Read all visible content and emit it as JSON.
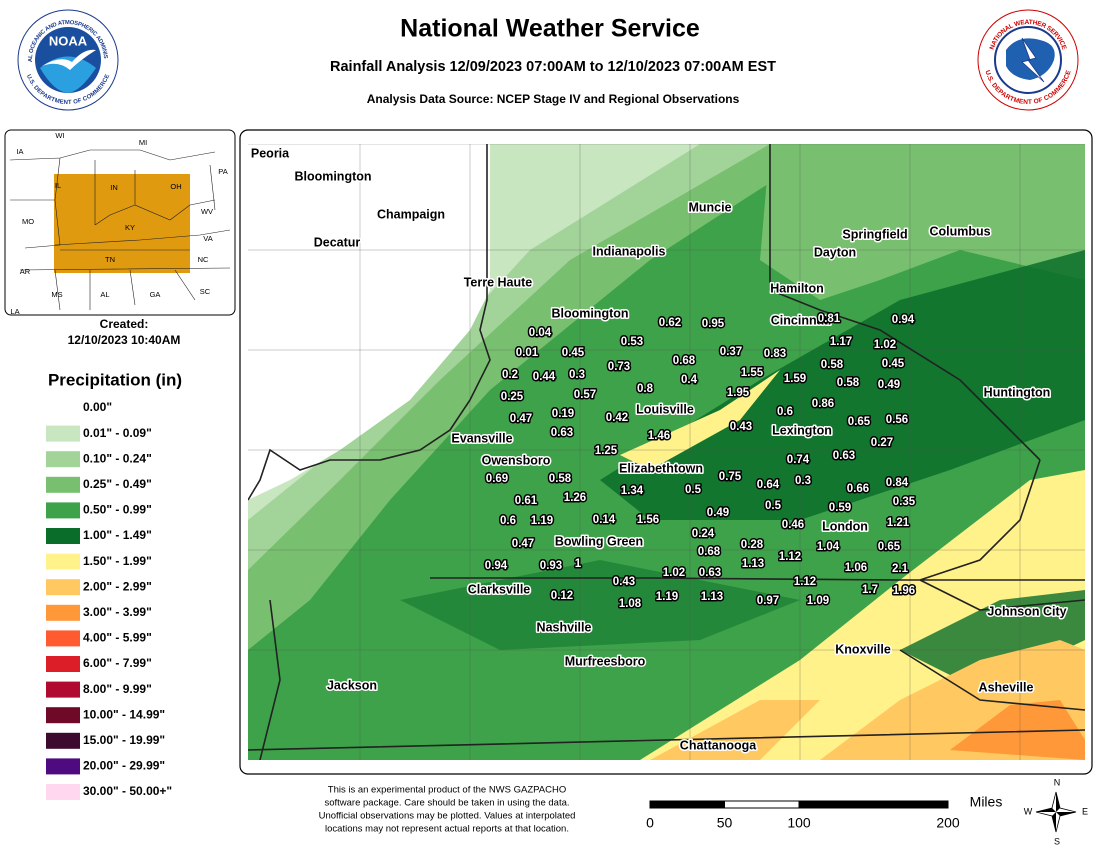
{
  "header": {
    "title": "National Weather Service",
    "subtitle": "Rainfall Analysis 12/09/2023 07:00AM to 12/10/2023 07:00AM EST",
    "source": "Analysis Data Source: NCEP Stage IV and Regional Observations"
  },
  "logos": {
    "noaa_center": "NOAA",
    "noaa_top": "NATIONAL OCEANIC AND ATMOSPHERIC ADMINISTRATION",
    "noaa_bottom": "U.S. DEPARTMENT OF COMMERCE",
    "nws_top": "NATIONAL WEATHER SERVICE",
    "nws_bottom": "U.S. DEPARTMENT OF COMMERCE"
  },
  "inset": {
    "states": [
      "WI",
      "MI",
      "IA",
      "IL",
      "IN",
      "OH",
      "PA",
      "MO",
      "KY",
      "WV",
      "VA",
      "NC",
      "TN",
      "AR",
      "MS",
      "AL",
      "GA",
      "SC",
      "LA"
    ]
  },
  "created": {
    "label": "Created:",
    "date": "12/10/2023 10:40AM"
  },
  "legend": {
    "title": "Precipitation (in)",
    "items": [
      {
        "label": "0.00\"",
        "color": "#ffffff"
      },
      {
        "label": "0.01\" - 0.09\"",
        "color": "#c8e6c0"
      },
      {
        "label": "0.10\" - 0.24\"",
        "color": "#a2d49a"
      },
      {
        "label": "0.25\" - 0.49\"",
        "color": "#78c070"
      },
      {
        "label": "0.50\" - 0.99\"",
        "color": "#3ea24a"
      },
      {
        "label": "1.00\" - 1.49\"",
        "color": "#0a6e2a"
      },
      {
        "label": "1.50\" - 1.99\"",
        "color": "#fff28a"
      },
      {
        "label": "2.00\" - 2.99\"",
        "color": "#ffc860"
      },
      {
        "label": "3.00\" - 3.99\"",
        "color": "#ff9838"
      },
      {
        "label": "4.00\" - 5.99\"",
        "color": "#ff5a30"
      },
      {
        "label": "6.00\" - 7.99\"",
        "color": "#dc1e28"
      },
      {
        "label": "8.00\" - 9.99\"",
        "color": "#b00a30"
      },
      {
        "label": "10.00\" - 14.99\"",
        "color": "#6e0a28"
      },
      {
        "label": "15.00\" - 19.99\"",
        "color": "#3c0a2e"
      },
      {
        "label": "20.00\" - 29.99\"",
        "color": "#500a80"
      },
      {
        "label": "30.00\" - 50.00+\"",
        "color": "#ffd8f0"
      }
    ]
  },
  "cities": [
    "Peoria",
    "Bloomington",
    "Champaign",
    "Decatur",
    "Muncie",
    "Indianapolis",
    "Springfield",
    "Columbus",
    "Dayton",
    "Terre Haute",
    "Hamilton",
    "Bloomington",
    "Cincinnati",
    "Huntington",
    "Louisville",
    "Lexington",
    "Evansville",
    "Owensboro",
    "Elizabethtown",
    "London",
    "Bowling Green",
    "Clarksville",
    "Johnson City",
    "Nashville",
    "Knoxville",
    "Murfreesboro",
    "Asheville",
    "Jackson",
    "Chattanooga"
  ],
  "observations": [
    0.04,
    0.62,
    0.95,
    0.81,
    0.94,
    0.53,
    1.17,
    1.02,
    0.01,
    0.45,
    0.37,
    0.83,
    0.68,
    0.73,
    0.58,
    0.45,
    1.55,
    0.2,
    0.44,
    0.3,
    0.4,
    1.59,
    0.58,
    0.49,
    0.8,
    0.57,
    1.95,
    0.25,
    0.86,
    0.47,
    0.19,
    0.42,
    0.6,
    0.65,
    0.56,
    0.43,
    0.63,
    1.46,
    0.27,
    1.25,
    0.63,
    0.74,
    0.69,
    0.58,
    0.75,
    0.64,
    0.3,
    0.66,
    0.84,
    1.34,
    0.5,
    0.61,
    1.26,
    0.35,
    0.49,
    0.5,
    0.59,
    0.6,
    1.19,
    0.14,
    1.56,
    0.46,
    1.21,
    0.24,
    0.47,
    0.28,
    1.04,
    0.65,
    0.68,
    1.12,
    0.94,
    0.93,
    1,
    1.13,
    1.06,
    2.1,
    1.02,
    0.63,
    0.43,
    1.12,
    0.12,
    1.7,
    1.96,
    1.08,
    1.19,
    1.13,
    0.97,
    1.09
  ],
  "disclaimer": [
    "This is an experimental product of the NWS GAZPACHO",
    "software package. Care should be taken in using the data.",
    "Unofficial observations may be plotted. Values at interpolated",
    "locations may not represent actual reports at that location."
  ],
  "scale": {
    "unit": "Miles",
    "ticks": [
      0,
      50,
      100,
      200
    ]
  },
  "compass": {
    "n": "N",
    "s": "S",
    "e": "E",
    "w": "W"
  }
}
